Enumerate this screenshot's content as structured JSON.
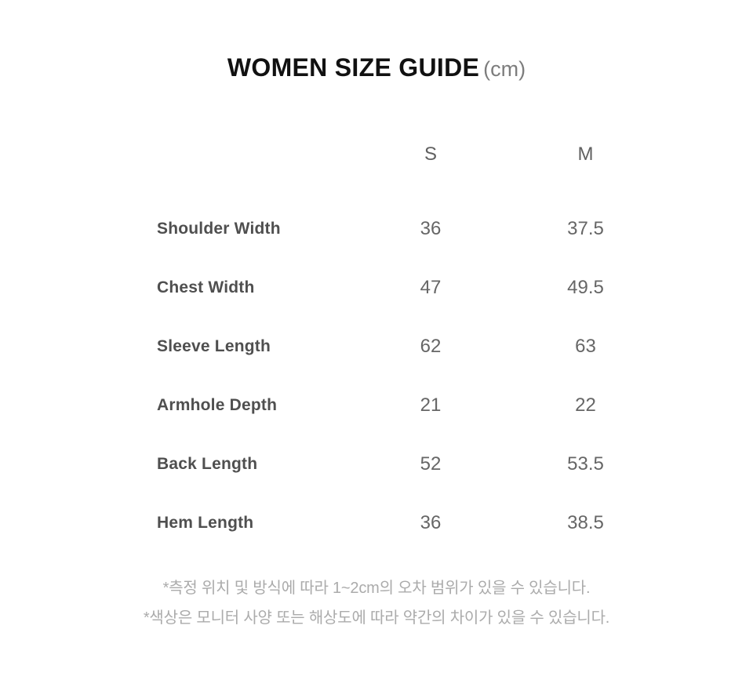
{
  "title": {
    "main": "WOMEN SIZE GUIDE",
    "unit": "(cm)"
  },
  "table": {
    "columns": [
      "S",
      "M"
    ],
    "rows": [
      {
        "label": "Shoulder Width",
        "s": "36",
        "m": "37.5"
      },
      {
        "label": "Chest Width",
        "s": "47",
        "m": "49.5"
      },
      {
        "label": "Sleeve Length",
        "s": "62",
        "m": "63"
      },
      {
        "label": "Armhole Depth",
        "s": "21",
        "m": "22"
      },
      {
        "label": "Back Length",
        "s": "52",
        "m": "53.5"
      },
      {
        "label": "Hem Length",
        "s": "36",
        "m": "38.5"
      }
    ]
  },
  "footnotes": [
    "*측정 위치 및 방식에 따라 1~2cm의 오차 범위가 있을 수 있습니다.",
    "*색상은 모니터 사양 또는 해상도에 따라 약간의 차이가 있을 수 있습니다."
  ],
  "colors": {
    "background": "#ffffff",
    "title": "#111111",
    "title_unit": "#7d7d7d",
    "column_header": "#606060",
    "row_label": "#4f4f4f",
    "cell_value": "#666666",
    "footnote": "#ababab"
  }
}
